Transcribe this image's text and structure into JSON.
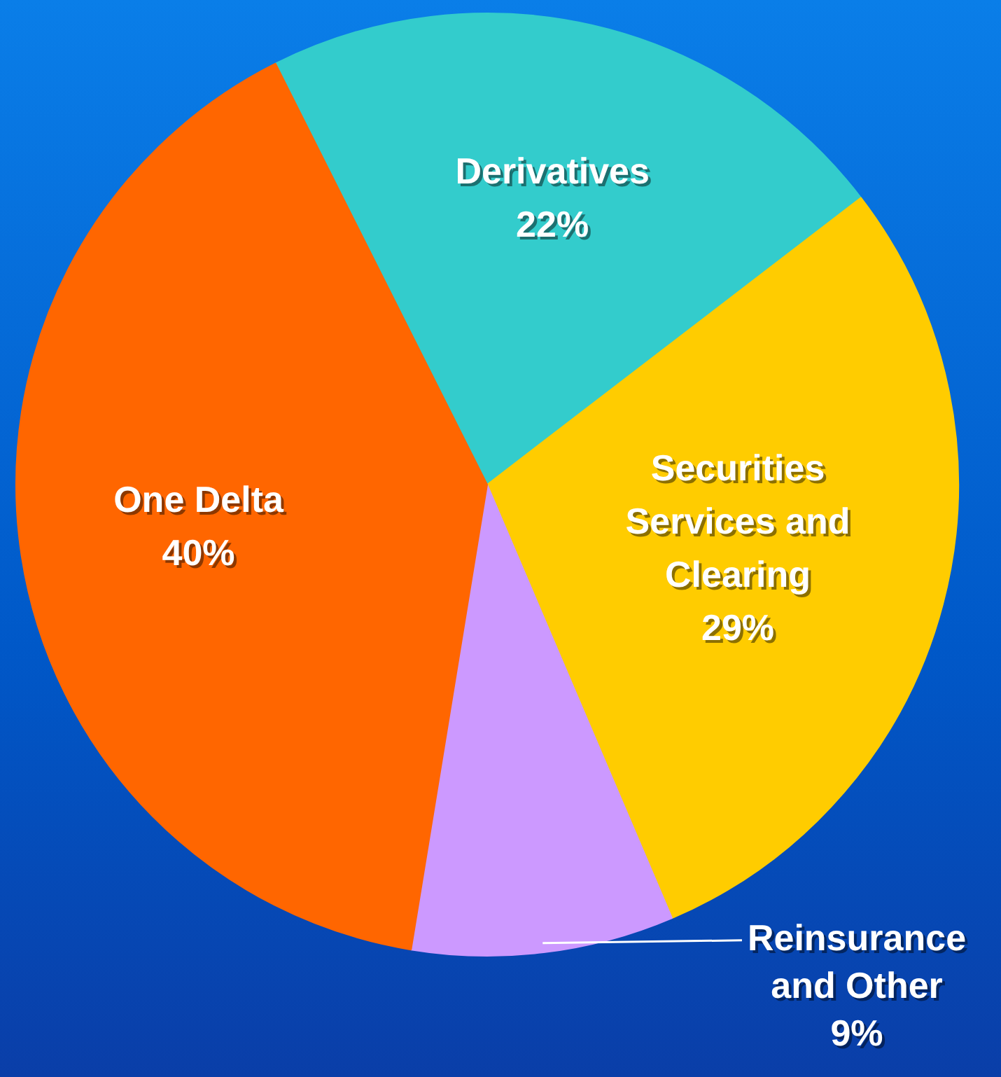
{
  "chart_data": {
    "type": "pie",
    "categories": [
      "Derivatives",
      "Securities Services and Clearing",
      "Reinsurance and Other",
      "One Delta"
    ],
    "values": [
      22,
      29,
      9,
      40
    ],
    "colors": [
      "#33cccc",
      "#ffcc00",
      "#cc99ff",
      "#ff6600"
    ],
    "value_labels": [
      "22%",
      "29%",
      "9%",
      "40%"
    ],
    "legend": false
  }
}
